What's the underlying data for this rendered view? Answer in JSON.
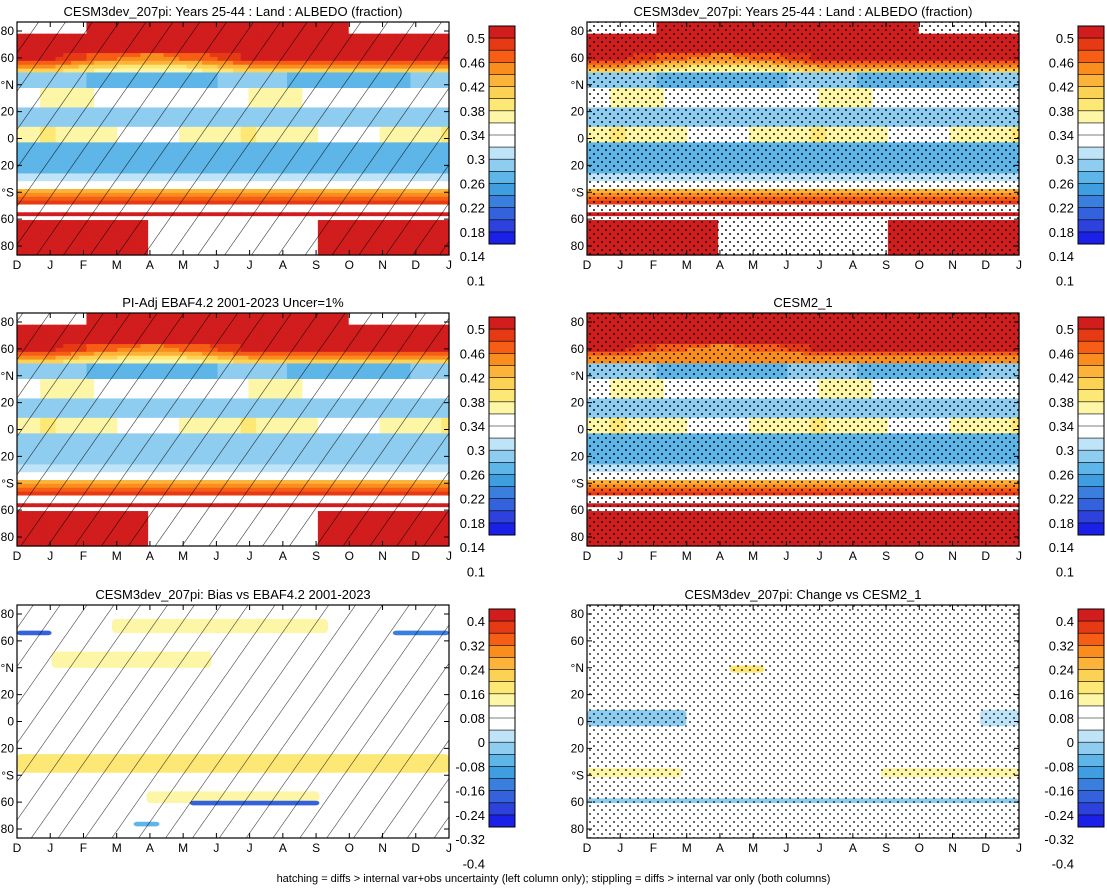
{
  "footer": "hatching = diffs > internal var+obs uncertainty (left column only); stippling = diffs > internal var only (both columns)",
  "chart_data": [
    {
      "type": "heatmap",
      "title": "CESM3dev_207pi: Years 25-44 : Land : ALBEDO (fraction)",
      "kind": "abs",
      "marks": "hatch",
      "cmap": "albedo",
      "variant": 0
    },
    {
      "type": "heatmap",
      "title": "CESM3dev_207pi: Years 25-44 : Land : ALBEDO (fraction)",
      "kind": "abs",
      "marks": "stipple",
      "cmap": "albedo",
      "variant": 0
    },
    {
      "type": "heatmap",
      "title": "PI-Adj EBAF4.2 2001-2023 Uncer=1%",
      "kind": "abs",
      "marks": "hatch",
      "cmap": "albedo",
      "variant": 1
    },
    {
      "type": "heatmap",
      "title": "CESM2_1",
      "kind": "abs",
      "marks": "stipple",
      "cmap": "albedo",
      "variant": 2
    },
    {
      "type": "heatmap",
      "title": "CESM3dev_207pi: Bias vs EBAF4.2 2001-2023",
      "kind": "bias",
      "marks": "hatch",
      "cmap": "diff",
      "variant": 0
    },
    {
      "type": "heatmap",
      "title": "CESM3dev_207pi: Change vs CESM2_1",
      "kind": "change",
      "marks": "stipple",
      "cmap": "diff",
      "variant": 0
    }
  ],
  "axes": {
    "x_ticks": [
      "D",
      "J",
      "F",
      "M",
      "A",
      "M",
      "J",
      "J",
      "A",
      "S",
      "O",
      "N",
      "D",
      "J"
    ],
    "y_ticks": [
      "80",
      "60",
      "°N",
      "20",
      "0",
      "20",
      "°S",
      "60",
      "80"
    ]
  },
  "colorbars": {
    "albedo": {
      "labels": [
        "0.5",
        "0.46",
        "0.42",
        "0.38",
        "0.34",
        "0.3",
        "0.26",
        "0.22",
        "0.18",
        "0.14",
        "0.1"
      ],
      "colors": [
        "#d11d1d",
        "#e63a15",
        "#f55e14",
        "#f98d1d",
        "#fbb33a",
        "#fcd255",
        "#fde876",
        "#fdf6a6",
        "#ffffff",
        "#ffffff",
        "#bfe4f8",
        "#8fcdf0",
        "#5eb5e8",
        "#3f9ee0",
        "#3a7fde",
        "#3461dc",
        "#2d42dd",
        "#1b20e8"
      ]
    },
    "diff": {
      "labels": [
        "0.4",
        "0.32",
        "0.24",
        "0.16",
        "0.08",
        "0",
        "-0.08",
        "-0.16",
        "-0.24",
        "-0.32",
        "-0.4"
      ],
      "colors": [
        "#d11d1d",
        "#e63a15",
        "#f55e14",
        "#f98d1d",
        "#fbb33a",
        "#fcd255",
        "#fde876",
        "#fdf6a6",
        "#ffffff",
        "#ffffff",
        "#bfe4f8",
        "#8fcdf0",
        "#5eb5e8",
        "#3f9ee0",
        "#3a7fde",
        "#3461dc",
        "#2d42dd",
        "#1b20e8"
      ]
    }
  }
}
